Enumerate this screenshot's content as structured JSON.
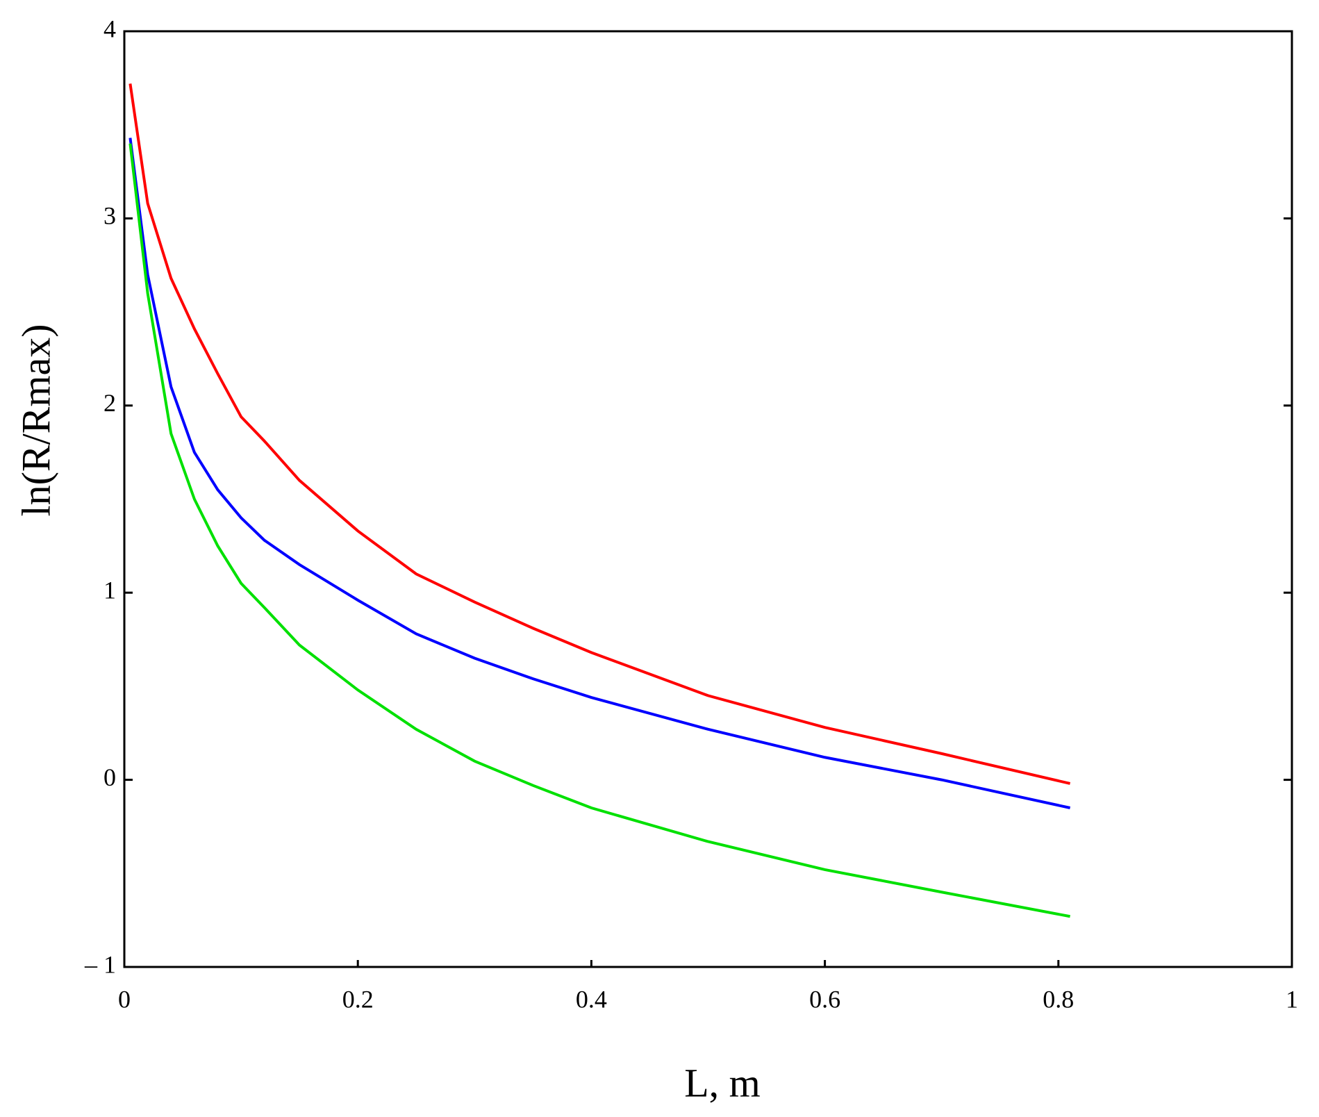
{
  "chart_data": {
    "type": "line",
    "x_label": "L, m",
    "y_label": "ln(R/Rmax)",
    "x": [
      0.005,
      0.02,
      0.04,
      0.06,
      0.08,
      0.1,
      0.12,
      0.15,
      0.2,
      0.25,
      0.3,
      0.35,
      0.4,
      0.5,
      0.6,
      0.7,
      0.81
    ],
    "series": [
      {
        "color": "#ff0000",
        "values": [
          3.72,
          3.08,
          2.68,
          2.41,
          2.17,
          1.94,
          1.81,
          1.6,
          1.33,
          1.1,
          0.95,
          0.81,
          0.68,
          0.45,
          0.28,
          0.14,
          -0.02
        ]
      },
      {
        "color": "#0000ff",
        "values": [
          3.43,
          2.7,
          2.1,
          1.75,
          1.55,
          1.4,
          1.28,
          1.15,
          0.96,
          0.78,
          0.65,
          0.54,
          0.44,
          0.27,
          0.12,
          0.0,
          -0.15
        ]
      },
      {
        "color": "#00e000",
        "values": [
          3.4,
          2.6,
          1.85,
          1.5,
          1.25,
          1.05,
          0.92,
          0.72,
          0.48,
          0.27,
          0.1,
          -0.03,
          -0.15,
          -0.33,
          -0.48,
          -0.6,
          -0.73
        ]
      }
    ],
    "xlim": [
      0,
      1
    ],
    "ylim": [
      -1,
      4
    ],
    "xticks": [
      0,
      0.2,
      0.4,
      0.6,
      0.8,
      1
    ],
    "yticks": [
      {
        "value": -1,
        "label": "– 1"
      },
      0,
      1,
      2,
      3,
      4
    ]
  }
}
